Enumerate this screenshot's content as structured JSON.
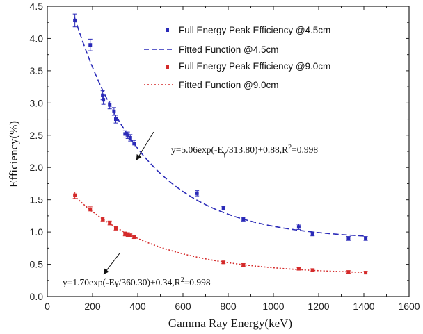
{
  "chart_data": {
    "type": "scatter",
    "xlabel": "Gamma Ray Energy(keV)",
    "ylabel": "Efficiency(%)",
    "xlim": [
      0,
      1600
    ],
    "ylim": [
      0.0,
      4.5
    ],
    "x_ticks": [
      0,
      200,
      400,
      600,
      800,
      1000,
      1200,
      1400,
      1600
    ],
    "x_tick_labels": [
      "0",
      "200",
      "400",
      "600",
      "800",
      "1000",
      "1200",
      "1400",
      "1600"
    ],
    "y_ticks": [
      0.0,
      0.5,
      1.0,
      1.5,
      2.0,
      2.5,
      3.0,
      3.5,
      4.0,
      4.5
    ],
    "y_tick_labels": [
      "0.0",
      "0.5",
      "1.0",
      "1.5",
      "2.0",
      "2.5",
      "3.0",
      "3.5",
      "4.0",
      "4.5"
    ],
    "grid": false,
    "legend_position": "top-right",
    "series": [
      {
        "name": "Full Energy Peak Efficiency @4.5cm",
        "kind": "points",
        "color": "#2a2ab8",
        "x": [
          122,
          190,
          245,
          248,
          276,
          295,
          303,
          344,
          356,
          367,
          384,
          662,
          779,
          867,
          1112,
          1173,
          1332,
          1408
        ],
        "y": [
          4.28,
          3.9,
          3.12,
          3.05,
          2.97,
          2.87,
          2.75,
          2.52,
          2.5,
          2.46,
          2.37,
          1.6,
          1.37,
          1.2,
          1.08,
          0.97,
          0.9,
          0.9
        ],
        "yerr": [
          0.1,
          0.09,
          0.07,
          0.07,
          0.06,
          0.06,
          0.06,
          0.05,
          0.05,
          0.05,
          0.05,
          0.04,
          0.03,
          0.03,
          0.04,
          0.03,
          0.03,
          0.03
        ]
      },
      {
        "name": "Fitted Function @4.5cm",
        "kind": "fit",
        "color": "#2a2ab8",
        "dash": "dashed",
        "A": 5.06,
        "t": 313.8,
        "y0": 0.88,
        "x_range": [
          120,
          1410
        ]
      },
      {
        "name": "Full Energy Peak Efficiency @9.0cm",
        "kind": "points",
        "color": "#d42a2a",
        "x": [
          122,
          190,
          245,
          276,
          303,
          344,
          356,
          367,
          384,
          779,
          867,
          1112,
          1173,
          1332,
          1408
        ],
        "y": [
          1.57,
          1.35,
          1.2,
          1.14,
          1.06,
          0.97,
          0.96,
          0.95,
          0.92,
          0.53,
          0.49,
          0.43,
          0.41,
          0.38,
          0.37
        ],
        "yerr": [
          0.05,
          0.04,
          0.03,
          0.03,
          0.03,
          0.03,
          0.03,
          0.02,
          0.02,
          0.02,
          0.02,
          0.02,
          0.02,
          0.02,
          0.02
        ]
      },
      {
        "name": "Fitted Function @9.0cm",
        "kind": "fit",
        "color": "#d42a2a",
        "dash": "dotted",
        "A": 1.7,
        "t": 360.3,
        "y0": 0.34,
        "x_range": [
          120,
          1410
        ]
      }
    ],
    "annotations": [
      {
        "text_parts": [
          "y=5.06exp(-E",
          "γ",
          "/313.80)+0.88,R",
          "2",
          "=0.998"
        ],
        "arrow_from": [
          470,
          2.55
        ],
        "arrow_to": [
          395,
          2.12
        ]
      },
      {
        "text_parts": [
          "y=1.70exp(-Eγ/360.30)+0.34,R",
          "2",
          "=0.998"
        ],
        "arrow_from": [
          320,
          0.67
        ],
        "arrow_to": [
          250,
          0.35
        ]
      }
    ]
  }
}
